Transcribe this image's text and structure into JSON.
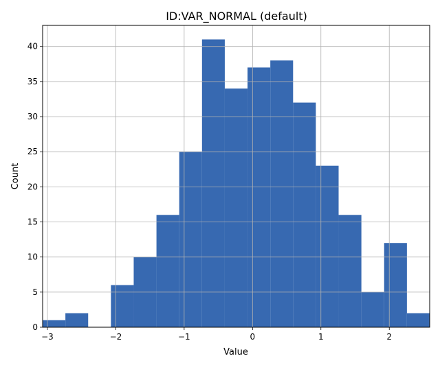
{
  "chart_data": {
    "type": "bar",
    "title": "ID:VAR_NORMAL (default)",
    "xlabel": "Value",
    "ylabel": "Count",
    "bin_edges": [
      -3.07,
      -2.737,
      -2.404,
      -2.071,
      -1.738,
      -1.405,
      -1.072,
      -0.739,
      -0.406,
      -0.073,
      0.26,
      0.593,
      0.926,
      1.259,
      1.592,
      1.925,
      2.258,
      2.591
    ],
    "values": [
      1,
      2,
      0,
      6,
      10,
      16,
      25,
      41,
      34,
      37,
      38,
      32,
      23,
      16,
      5,
      12,
      2
    ],
    "xlim": [
      -3.07,
      2.591
    ],
    "ylim": [
      0,
      43
    ],
    "xticks": [
      -3,
      -2,
      -1,
      0,
      1,
      2
    ],
    "yticks": [
      0,
      5,
      10,
      15,
      20,
      25,
      30,
      35,
      40
    ],
    "grid": true,
    "bar_color": "#3769b1",
    "grid_color": "#b0b0b0"
  }
}
